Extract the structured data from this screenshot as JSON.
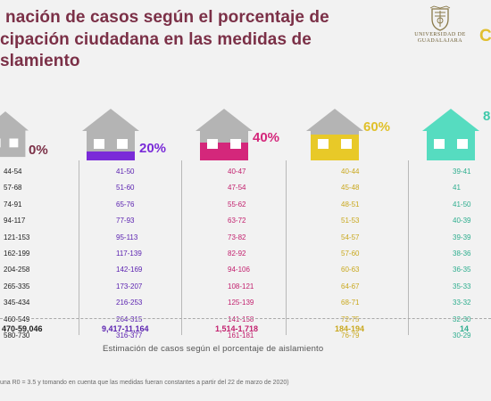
{
  "title": {
    "line1": "nación de casos según el porcentaje de",
    "line2": "cipación ciudadana en las medidas de",
    "line3": "slamiento"
  },
  "logo": {
    "line1": "UNIVERSIDAD DE",
    "line2": "GUADALAJARA",
    "edge_letter": "C"
  },
  "colors": {
    "title": "#7b3047",
    "gray": "#b4b4b4",
    "purple": "#7a2bd8",
    "magenta": "#d4277b",
    "yellow": "#e8c928",
    "teal": "#56dcc0"
  },
  "columns": [
    {
      "pct": "0%",
      "house_icon": "gray-house-icon",
      "values": [
        "44-54",
        "57-68",
        "74-91",
        "94-117",
        "121-153",
        "162-199",
        "204-258",
        "265-335",
        "345-434",
        "460-549",
        "580-730"
      ],
      "total": "470-59,046"
    },
    {
      "pct": "20%",
      "house_icon": "purple-house-icon",
      "values": [
        "41-50",
        "51-60",
        "65-76",
        "77-93",
        "95-113",
        "117-139",
        "142-169",
        "173-207",
        "216-253",
        "264-315",
        "316-377"
      ],
      "total": "9,417-11,164"
    },
    {
      "pct": "40%",
      "house_icon": "magenta-house-icon",
      "values": [
        "40-47",
        "47-54",
        "55-62",
        "63-72",
        "73-82",
        "82-92",
        "94-106",
        "108-121",
        "125-139",
        "141-158",
        "161-181"
      ],
      "total": "1,514-1,718"
    },
    {
      "pct": "60%",
      "house_icon": "yellow-house-icon",
      "values": [
        "40-44",
        "45-48",
        "48-51",
        "51-53",
        "54-57",
        "57-60",
        "60-63",
        "64-67",
        "68-71",
        "72-75",
        "76-79"
      ],
      "total": "184-194"
    },
    {
      "pct": "8",
      "house_icon": "teal-house-icon",
      "values": [
        "39-41",
        "41",
        "41-50",
        "40-39",
        "39-39",
        "38-36",
        "36-35",
        "35-33",
        "33-32",
        "32-30",
        "30-29"
      ],
      "total": "14"
    }
  ],
  "subcaption": "Estimación de casos según el porcentaje de aislamiento",
  "footnote": "una R0 = 3.5 y tomando en cuenta que las medidas fueran constantes a partir del 22 de marzo de 2020)"
}
